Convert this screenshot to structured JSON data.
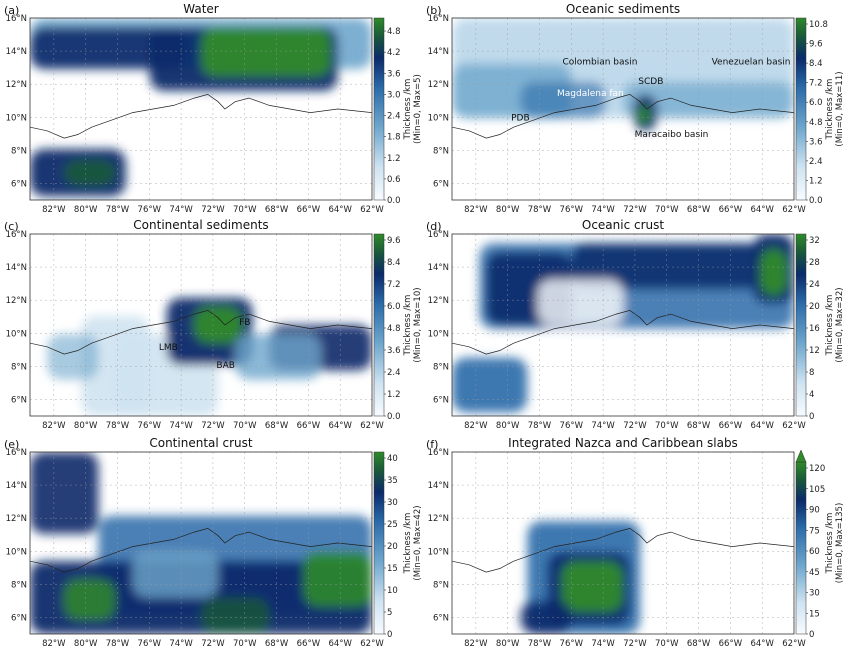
{
  "figure": {
    "xticks": [
      "82°W",
      "80°W",
      "78°W",
      "76°W",
      "74°W",
      "72°W",
      "70°W",
      "68°W",
      "66°W",
      "64°W",
      "62°W"
    ],
    "yticks": [
      "6°N",
      "8°N",
      "10°N",
      "12°N",
      "14°N",
      "16°N"
    ],
    "colors": {
      "light": "#f7fbff",
      "mid": "#6ea6cc",
      "dark": "#0b2a6a",
      "green": "#2f8a2a",
      "land": "#ffffff"
    }
  },
  "chart_data": [
    {
      "panel": "(a)",
      "type": "heatmap",
      "title": "Water",
      "xlabel": "",
      "ylabel": "",
      "xlim": [
        -83.5,
        -62
      ],
      "ylim": [
        5,
        16
      ],
      "colorbar": {
        "label": "Thickness /km\n(Min=0, Max=5)",
        "label_lines": [
          "Thickness /km",
          "(Min=0, Max=5)"
        ],
        "min": 0,
        "max": 5.0,
        "ticks": [
          "0.0",
          "0.6",
          "1.2",
          "1.8",
          "2.4",
          "3.0",
          "3.6",
          "4.2",
          "4.8"
        ],
        "extend": "none"
      },
      "annotations": []
    },
    {
      "panel": "(b)",
      "type": "heatmap",
      "title": "Oceanic sediments",
      "xlabel": "",
      "ylabel": "",
      "xlim": [
        -83.5,
        -62
      ],
      "ylim": [
        5,
        16
      ],
      "colorbar": {
        "label": "Thickness /km\n(Min=0, Max=11)",
        "label_lines": [
          "Thickness /km",
          "(Min=0, Max=11)"
        ],
        "min": 0,
        "max": 10.8,
        "ticks": [
          "0.0",
          "1.2",
          "2.4",
          "3.6",
          "4.8",
          "6.0",
          "7.2",
          "8.4",
          "9.6",
          "10.8"
        ],
        "extend": "none"
      },
      "annotations": [
        {
          "text": "Colombian basin",
          "lon": -74.2,
          "lat": 13.2,
          "color": "#111111"
        },
        {
          "text": "Venezuelan basin",
          "lon": -64.7,
          "lat": 13.2,
          "color": "#111111"
        },
        {
          "text": "SCDB",
          "lon": -71.0,
          "lat": 12.0,
          "color": "#111111"
        },
        {
          "text": "Magdalena fan",
          "lon": -74.8,
          "lat": 11.3,
          "color": "#ffffff"
        },
        {
          "text": "PDB",
          "lon": -79.2,
          "lat": 9.8,
          "color": "#111111"
        },
        {
          "text": "Maracaibo basin",
          "lon": -69.7,
          "lat": 8.8,
          "color": "#111111"
        }
      ]
    },
    {
      "panel": "(c)",
      "type": "heatmap",
      "title": "Continental sediments",
      "xlabel": "",
      "ylabel": "",
      "xlim": [
        -83.5,
        -62
      ],
      "ylim": [
        5,
        16
      ],
      "colorbar": {
        "label": "Thickness /km\n(Min=0, Max=10)",
        "label_lines": [
          "Thickness /km",
          "(Min=0, Max=10)"
        ],
        "min": 0,
        "max": 9.6,
        "ticks": [
          "0.0",
          "1.2",
          "2.4",
          "3.6",
          "4.8",
          "6.0",
          "7.2",
          "8.4",
          "9.6"
        ],
        "extend": "none"
      },
      "annotations": [
        {
          "text": "FB",
          "lon": -70.0,
          "lat": 10.5,
          "color": "#111111"
        },
        {
          "text": "LMB",
          "lon": -74.8,
          "lat": 9.0,
          "color": "#111111"
        },
        {
          "text": "BAB",
          "lon": -71.2,
          "lat": 7.9,
          "color": "#111111"
        }
      ]
    },
    {
      "panel": "(d)",
      "type": "heatmap",
      "title": "Oceanic crust",
      "xlabel": "",
      "ylabel": "",
      "xlim": [
        -83.5,
        -62
      ],
      "ylim": [
        5,
        16
      ],
      "colorbar": {
        "label": "Thickness /km\n(Min=0, Max=32)",
        "label_lines": [
          "Thickness /km",
          "(Min=0, Max=32)"
        ],
        "min": 0,
        "max": 32,
        "ticks": [
          "0",
          "4",
          "8",
          "12",
          "16",
          "20",
          "24",
          "28",
          "32"
        ],
        "extend": "none"
      },
      "annotations": []
    },
    {
      "panel": "(e)",
      "type": "heatmap",
      "title": "Continental crust",
      "xlabel": "",
      "ylabel": "",
      "xlim": [
        -83.5,
        -62
      ],
      "ylim": [
        5,
        16
      ],
      "colorbar": {
        "label": "Thickness /km\n(Min=0, Max=42)",
        "label_lines": [
          "Thickness /km",
          "(Min=0, Max=42)"
        ],
        "min": 0,
        "max": 40,
        "ticks": [
          "0",
          "5",
          "10",
          "15",
          "20",
          "25",
          "30",
          "35",
          "40"
        ],
        "extend": "none"
      },
      "annotations": []
    },
    {
      "panel": "(f)",
      "type": "heatmap",
      "title": "Integrated Nazca and Caribbean slabs",
      "xlabel": "",
      "ylabel": "",
      "xlim": [
        -83.5,
        -62
      ],
      "ylim": [
        5,
        16
      ],
      "colorbar": {
        "label": "Thickness /km\n(Min=0, Max=135)",
        "label_lines": [
          "Thickness /km",
          "(Min=0, Max=135)"
        ],
        "min": 0,
        "max": 120,
        "ticks": [
          "0",
          "15",
          "30",
          "45",
          "60",
          "75",
          "90",
          "105",
          "120"
        ],
        "extend": "max"
      },
      "annotations": []
    }
  ]
}
